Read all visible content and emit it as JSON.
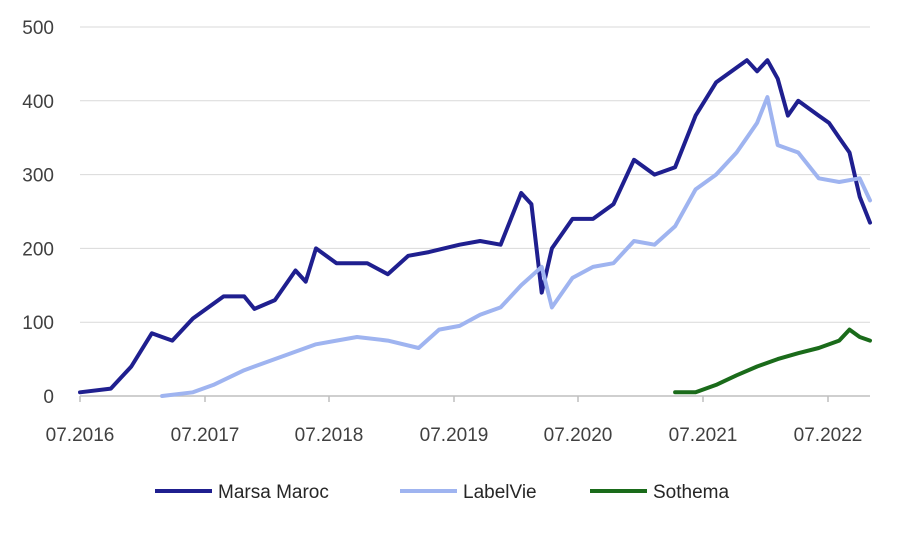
{
  "chart_data": {
    "type": "line",
    "title": "",
    "xlabel": "",
    "ylabel": "",
    "ylim": [
      0,
      500
    ],
    "yticks": [
      0,
      100,
      200,
      300,
      400,
      500
    ],
    "xlim": [
      "2016-07-01",
      "2022-12-01"
    ],
    "xticks": [
      "07.2016",
      "07.2017",
      "07.2018",
      "07.2019",
      "07.2020",
      "07.2021",
      "07.2022"
    ],
    "grid": "horizontal",
    "legend_position": "bottom",
    "series": [
      {
        "name": "Marsa Maroc",
        "color": "#1f1f8f",
        "points": [
          [
            "2016-07",
            5
          ],
          [
            "2016-10",
            10
          ],
          [
            "2016-12",
            40
          ],
          [
            "2017-02",
            85
          ],
          [
            "2017-03",
            80
          ],
          [
            "2017-04",
            75
          ],
          [
            "2017-06",
            105
          ],
          [
            "2017-09",
            135
          ],
          [
            "2017-11",
            135
          ],
          [
            "2017-12",
            118
          ],
          [
            "2018-02",
            130
          ],
          [
            "2018-04",
            170
          ],
          [
            "2018-05",
            155
          ],
          [
            "2018-06",
            200
          ],
          [
            "2018-08",
            180
          ],
          [
            "2018-11",
            180
          ],
          [
            "2019-01",
            165
          ],
          [
            "2019-03",
            190
          ],
          [
            "2019-05",
            195
          ],
          [
            "2019-08",
            205
          ],
          [
            "2019-10",
            210
          ],
          [
            "2019-12",
            205
          ],
          [
            "2020-01",
            240
          ],
          [
            "2020-02",
            275
          ],
          [
            "2020-03",
            260
          ],
          [
            "2020-04",
            140
          ],
          [
            "2020-05",
            200
          ],
          [
            "2020-07",
            240
          ],
          [
            "2020-09",
            240
          ],
          [
            "2020-11",
            260
          ],
          [
            "2021-01",
            320
          ],
          [
            "2021-03",
            300
          ],
          [
            "2021-05",
            310
          ],
          [
            "2021-07",
            380
          ],
          [
            "2021-09",
            425
          ],
          [
            "2021-11",
            445
          ],
          [
            "2021-12",
            455
          ],
          [
            "2022-01",
            440
          ],
          [
            "2022-02",
            455
          ],
          [
            "2022-03",
            430
          ],
          [
            "2022-04",
            380
          ],
          [
            "2022-05",
            400
          ],
          [
            "2022-07",
            380
          ],
          [
            "2022-08",
            370
          ],
          [
            "2022-09",
            350
          ],
          [
            "2022-10",
            330
          ],
          [
            "2022-11",
            270
          ],
          [
            "2022-12",
            235
          ]
        ]
      },
      {
        "name": "LabelVie",
        "color": "#9fb4f0",
        "points": [
          [
            "2017-03",
            0
          ],
          [
            "2017-06",
            5
          ],
          [
            "2017-08",
            15
          ],
          [
            "2017-11",
            35
          ],
          [
            "2018-03",
            55
          ],
          [
            "2018-06",
            70
          ],
          [
            "2018-08",
            75
          ],
          [
            "2018-10",
            80
          ],
          [
            "2019-01",
            75
          ],
          [
            "2019-04",
            65
          ],
          [
            "2019-06",
            90
          ],
          [
            "2019-08",
            95
          ],
          [
            "2019-10",
            110
          ],
          [
            "2019-12",
            120
          ],
          [
            "2020-02",
            150
          ],
          [
            "2020-04",
            175
          ],
          [
            "2020-05",
            120
          ],
          [
            "2020-07",
            160
          ],
          [
            "2020-09",
            175
          ],
          [
            "2020-11",
            180
          ],
          [
            "2021-01",
            210
          ],
          [
            "2021-03",
            205
          ],
          [
            "2021-05",
            230
          ],
          [
            "2021-07",
            280
          ],
          [
            "2021-09",
            300
          ],
          [
            "2021-11",
            330
          ],
          [
            "2021-12",
            350
          ],
          [
            "2022-01",
            370
          ],
          [
            "2022-02",
            405
          ],
          [
            "2022-03",
            340
          ],
          [
            "2022-05",
            330
          ],
          [
            "2022-07",
            295
          ],
          [
            "2022-09",
            290
          ],
          [
            "2022-11",
            295
          ],
          [
            "2022-12",
            265
          ]
        ]
      },
      {
        "name": "Sothema",
        "color": "#1a6b1a",
        "points": [
          [
            "2021-05",
            5
          ],
          [
            "2021-07",
            5
          ],
          [
            "2021-09",
            15
          ],
          [
            "2021-11",
            28
          ],
          [
            "2022-01",
            40
          ],
          [
            "2022-03",
            50
          ],
          [
            "2022-05",
            58
          ],
          [
            "2022-07",
            65
          ],
          [
            "2022-09",
            75
          ],
          [
            "2022-10",
            90
          ],
          [
            "2022-11",
            80
          ],
          [
            "2022-12",
            75
          ]
        ]
      }
    ]
  }
}
